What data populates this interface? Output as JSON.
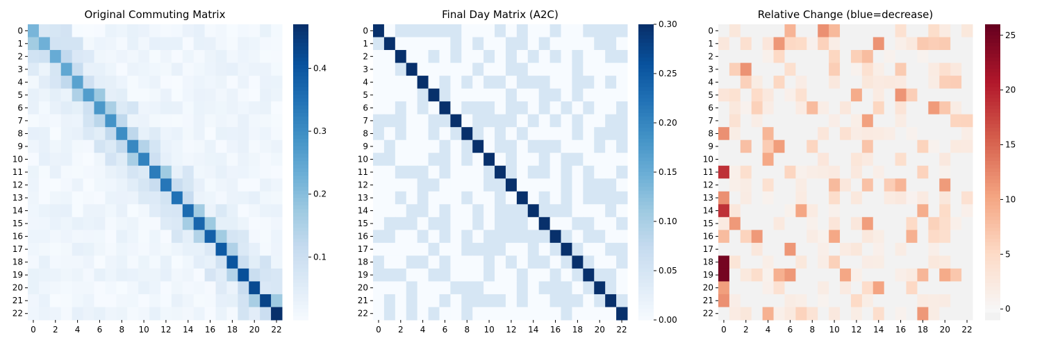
{
  "chart_data": [
    {
      "type": "heatmap",
      "title": "Original Commuting Matrix",
      "xlabel": "",
      "ylabel": "",
      "colormap": "Blues",
      "vmin": 0.0,
      "vmax": 0.47,
      "colorbar_ticks": [
        0.1,
        0.2,
        0.3,
        0.4
      ],
      "colorbar_tick_labels": [
        "0.1",
        "0.2",
        "0.3",
        "0.4"
      ],
      "description": "Strong diagonal (~0.25-0.47); neighboring off-diagonal values ~0.02-0.2."
    },
    {
      "type": "heatmap",
      "title": "Final Day Matrix (A2C)",
      "xlabel": "",
      "ylabel": "",
      "colormap": "Blues",
      "vmin": 0.0,
      "vmax": 0.3,
      "colorbar_ticks": [
        0.0,
        0.05,
        0.1,
        0.15,
        0.2,
        0.25,
        0.3
      ],
      "colorbar_tick_labels": [
        "0.00",
        "0.05",
        "0.10",
        "0.15",
        "0.20",
        "0.25",
        "0.30"
      ],
      "description": "Diagonal near 0.30; off-diagonal cells either ~0 or ~0.05."
    },
    {
      "type": "heatmap",
      "title": "Relative Change (blue=decrease)",
      "xlabel": "",
      "ylabel": "",
      "colormap": "RdBu_r",
      "vmin": -1,
      "vmax": 26,
      "colorbar_ticks": [
        0,
        5,
        10,
        15,
        20,
        25
      ],
      "colorbar_tick_labels": [
        "0",
        "5",
        "10",
        "15",
        "20",
        "25"
      ],
      "description": "Mostly near 0; strong increases in column 0 for rows 18-19 (~25), rows 11,14 (~20); moderate increases scattered."
    }
  ],
  "shared_axes": {
    "size": 23,
    "row_labels": [
      "0",
      "1",
      "2",
      "3",
      "4",
      "5",
      "6",
      "7",
      "8",
      "9",
      "10",
      "11",
      "12",
      "13",
      "14",
      "15",
      "16",
      "17",
      "18",
      "19",
      "20",
      "21",
      "22"
    ],
    "col_tick_labels": [
      "0",
      "2",
      "4",
      "6",
      "8",
      "10",
      "12",
      "14",
      "16",
      "18",
      "20",
      "22"
    ]
  },
  "colors": {
    "blues_ramp": [
      "#f7fbff",
      "#deebf7",
      "#c6dbef",
      "#9ecae1",
      "#6baed6",
      "#4292c6",
      "#2171b5",
      "#08519c",
      "#08306b"
    ],
    "rdbu_neg": "#f2f2f2",
    "rdbu_ramp": [
      "#f7f7f7",
      "#fddbc7",
      "#f4a582",
      "#d6604d",
      "#b2182b",
      "#67001f"
    ]
  }
}
